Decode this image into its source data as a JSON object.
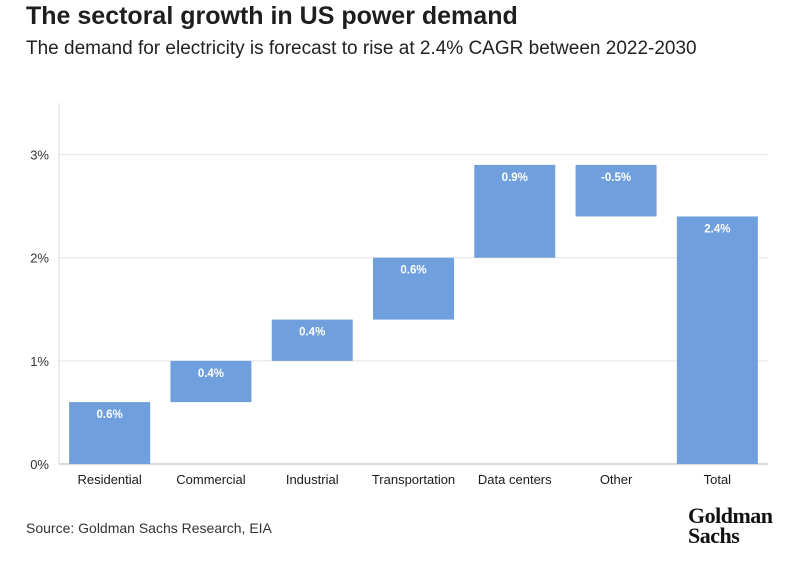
{
  "chart_data": {
    "type": "bar",
    "subtype": "waterfall",
    "title": "The sectoral growth in US power demand",
    "subtitle": "The demand for electricity is forecast to rise at 2.4% CAGR between 2022-2030",
    "categories": [
      "Residential",
      "Commercial",
      "Industrial",
      "Transportation",
      "Data centers",
      "Other",
      "Total"
    ],
    "values": [
      0.6,
      0.4,
      0.4,
      0.6,
      0.9,
      -0.5,
      2.4
    ],
    "value_labels": [
      "0.6%",
      "0.4%",
      "0.4%",
      "0.6%",
      "0.9%",
      "-0.5%",
      "2.4%"
    ],
    "bar_start": [
      0,
      0.6,
      1.0,
      1.4,
      2.0,
      2.9,
      0
    ],
    "bar_end": [
      0.6,
      1.0,
      1.4,
      2.0,
      2.9,
      2.4,
      2.4
    ],
    "ylim": [
      0,
      3.5
    ],
    "yticks": [
      0,
      1,
      2,
      3
    ],
    "ytick_labels": [
      "0%",
      "1%",
      "2%",
      "3%"
    ],
    "xlabel": "",
    "ylabel": "",
    "grid": true,
    "bar_color": "#6f9fdc"
  },
  "source": "Source: Goldman Sachs Research, EIA",
  "brand": {
    "line1": "Goldman",
    "line2": "Sachs"
  }
}
